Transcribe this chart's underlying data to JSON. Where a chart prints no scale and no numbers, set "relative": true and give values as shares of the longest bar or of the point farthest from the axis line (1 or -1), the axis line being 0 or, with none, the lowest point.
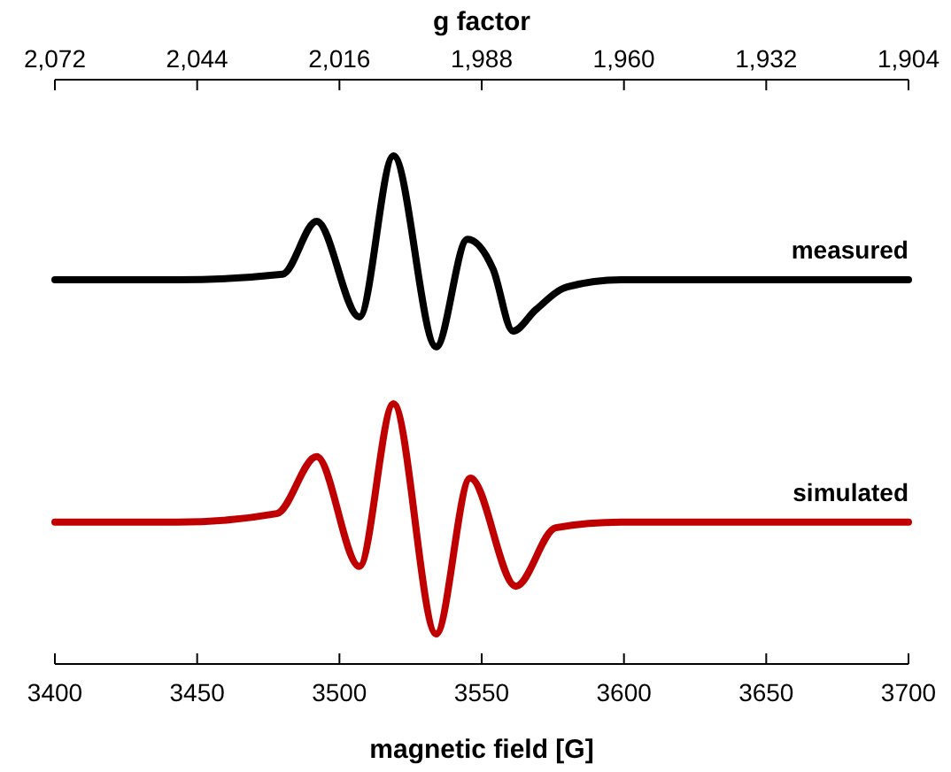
{
  "chart_data": {
    "type": "line",
    "relative": true,
    "xlabel": "magnetic field [G]",
    "x2label": "g factor",
    "xlim": [
      3400,
      3700
    ],
    "xticks": [
      3400,
      3450,
      3500,
      3550,
      3600,
      3650,
      3700
    ],
    "x2lim": [
      2072,
      1904
    ],
    "x2ticks": [
      {
        "value": 2072,
        "label": "2,072"
      },
      {
        "value": 2044,
        "label": "2,044"
      },
      {
        "value": 2016,
        "label": "2,016"
      },
      {
        "value": 1988,
        "label": "1,988"
      },
      {
        "value": 1960,
        "label": "1,960"
      },
      {
        "value": 1932,
        "label": "1,932"
      },
      {
        "value": 1904,
        "label": "1,904"
      }
    ],
    "legend": false,
    "grid": false,
    "marker": "none",
    "line_style": "solid",
    "series": [
      {
        "name": "measured",
        "color": "#000000",
        "x": [
          3400,
          3443,
          3480,
          3492,
          3507,
          3519,
          3534,
          3545,
          3554,
          3561,
          3569,
          3580,
          3599,
          3700
        ],
        "values": [
          0.756,
          0.756,
          0.767,
          0.871,
          0.683,
          1.0,
          0.624,
          0.836,
          0.777,
          0.655,
          0.697,
          0.742,
          0.756,
          0.756
        ]
      },
      {
        "name": "simulated",
        "color": "#c00000",
        "x": [
          3400,
          3443,
          3478,
          3492,
          3507,
          3519,
          3534,
          3546,
          3562,
          3576,
          3599,
          3700
        ],
        "values": [
          0.279,
          0.279,
          0.296,
          0.408,
          0.192,
          0.512,
          0.059,
          0.366,
          0.153,
          0.268,
          0.279,
          0.279
        ]
      }
    ]
  }
}
